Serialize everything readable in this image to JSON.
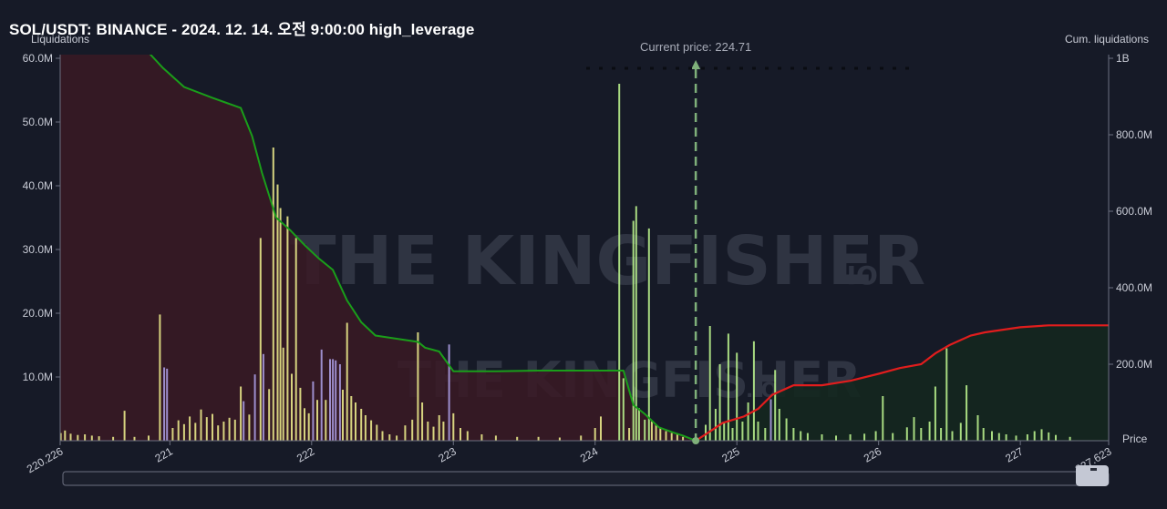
{
  "header": {
    "title": "SOL/USDT: BINANCE - 2024. 12. 14. 오전 9:00:00 high_leverage"
  },
  "labels": {
    "left_axis": "Liquidations",
    "right_axis": "Cum. liquidations",
    "x_axis": "Price",
    "current_price": "Current price: 224.71",
    "watermark_main": "THE KINGFISHER",
    "watermark_suffix": ".IO"
  },
  "colors": {
    "background": "#161a27",
    "left_cum_line": "#1a9e1a",
    "right_cum_line": "#e11d1d",
    "left_fill": "#3a1a24",
    "right_fill": "#14271f",
    "bar_yellow": "#e9e88a",
    "bar_purple": "#a89be0",
    "bar_green": "#b8f08c",
    "current_price_line": "#7fb07a"
  },
  "chart_data": {
    "type": "bar",
    "x_range": [
      220.226,
      227.623
    ],
    "x_ticks": [
      "220.226",
      "221",
      "222",
      "223",
      "224",
      "225",
      "226",
      "227",
      "227.623"
    ],
    "y_left": {
      "label": "Liquidations",
      "ticks": [
        "10.0M",
        "20.0M",
        "30.0M",
        "40.0M",
        "50.0M",
        "60.0M"
      ],
      "range": [
        0,
        60000000
      ]
    },
    "y_right": {
      "label": "Cum. liquidations",
      "ticks": [
        "200.0M",
        "400.0M",
        "600.0M",
        "800.0M",
        "1B"
      ],
      "range": [
        0,
        1000000000
      ]
    },
    "current_price": 224.71,
    "bars": [
      {
        "price": 220.23,
        "value": 1.2,
        "color": "yellow"
      },
      {
        "price": 220.26,
        "value": 1.6,
        "color": "yellow"
      },
      {
        "price": 220.3,
        "value": 1.1,
        "color": "yellow"
      },
      {
        "price": 220.35,
        "value": 0.9,
        "color": "yellow"
      },
      {
        "price": 220.4,
        "value": 1.0,
        "color": "yellow"
      },
      {
        "price": 220.45,
        "value": 0.8,
        "color": "yellow"
      },
      {
        "price": 220.5,
        "value": 0.7,
        "color": "yellow"
      },
      {
        "price": 220.6,
        "value": 0.6,
        "color": "yellow"
      },
      {
        "price": 220.68,
        "value": 4.7,
        "color": "yellow"
      },
      {
        "price": 220.75,
        "value": 0.6,
        "color": "yellow"
      },
      {
        "price": 220.85,
        "value": 0.8,
        "color": "yellow"
      },
      {
        "price": 220.93,
        "value": 19.8,
        "color": "yellow"
      },
      {
        "price": 220.96,
        "value": 11.5,
        "color": "purple"
      },
      {
        "price": 220.98,
        "value": 11.3,
        "color": "purple"
      },
      {
        "price": 221.02,
        "value": 2.0,
        "color": "yellow"
      },
      {
        "price": 221.06,
        "value": 3.2,
        "color": "yellow"
      },
      {
        "price": 221.1,
        "value": 2.6,
        "color": "yellow"
      },
      {
        "price": 221.14,
        "value": 3.8,
        "color": "yellow"
      },
      {
        "price": 221.18,
        "value": 2.8,
        "color": "yellow"
      },
      {
        "price": 221.22,
        "value": 4.9,
        "color": "yellow"
      },
      {
        "price": 221.26,
        "value": 3.7,
        "color": "yellow"
      },
      {
        "price": 221.3,
        "value": 4.2,
        "color": "yellow"
      },
      {
        "price": 221.34,
        "value": 2.4,
        "color": "yellow"
      },
      {
        "price": 221.38,
        "value": 3.0,
        "color": "yellow"
      },
      {
        "price": 221.42,
        "value": 3.6,
        "color": "yellow"
      },
      {
        "price": 221.46,
        "value": 3.3,
        "color": "yellow"
      },
      {
        "price": 221.5,
        "value": 8.5,
        "color": "yellow"
      },
      {
        "price": 221.52,
        "value": 6.2,
        "color": "purple"
      },
      {
        "price": 221.56,
        "value": 4.1,
        "color": "yellow"
      },
      {
        "price": 221.6,
        "value": 10.4,
        "color": "purple"
      },
      {
        "price": 221.64,
        "value": 31.8,
        "color": "yellow"
      },
      {
        "price": 221.66,
        "value": 13.6,
        "color": "purple"
      },
      {
        "price": 221.7,
        "value": 8.1,
        "color": "yellow"
      },
      {
        "price": 221.73,
        "value": 46.0,
        "color": "yellow"
      },
      {
        "price": 221.76,
        "value": 40.2,
        "color": "yellow"
      },
      {
        "price": 221.78,
        "value": 36.5,
        "color": "yellow"
      },
      {
        "price": 221.8,
        "value": 14.6,
        "color": "yellow"
      },
      {
        "price": 221.83,
        "value": 35.2,
        "color": "yellow"
      },
      {
        "price": 221.86,
        "value": 10.5,
        "color": "yellow"
      },
      {
        "price": 221.89,
        "value": 31.8,
        "color": "yellow"
      },
      {
        "price": 221.92,
        "value": 8.3,
        "color": "yellow"
      },
      {
        "price": 221.95,
        "value": 5.1,
        "color": "yellow"
      },
      {
        "price": 221.98,
        "value": 4.3,
        "color": "yellow"
      },
      {
        "price": 222.01,
        "value": 9.3,
        "color": "purple"
      },
      {
        "price": 222.04,
        "value": 6.4,
        "color": "yellow"
      },
      {
        "price": 222.07,
        "value": 14.3,
        "color": "purple"
      },
      {
        "price": 222.1,
        "value": 6.4,
        "color": "yellow"
      },
      {
        "price": 222.13,
        "value": 12.8,
        "color": "purple"
      },
      {
        "price": 222.15,
        "value": 12.8,
        "color": "purple"
      },
      {
        "price": 222.17,
        "value": 12.6,
        "color": "purple"
      },
      {
        "price": 222.2,
        "value": 12.0,
        "color": "purple"
      },
      {
        "price": 222.22,
        "value": 8.0,
        "color": "yellow"
      },
      {
        "price": 222.25,
        "value": 18.5,
        "color": "yellow"
      },
      {
        "price": 222.28,
        "value": 7.0,
        "color": "yellow"
      },
      {
        "price": 222.31,
        "value": 6.0,
        "color": "yellow"
      },
      {
        "price": 222.35,
        "value": 5.0,
        "color": "yellow"
      },
      {
        "price": 222.38,
        "value": 4.0,
        "color": "yellow"
      },
      {
        "price": 222.42,
        "value": 3.2,
        "color": "yellow"
      },
      {
        "price": 222.46,
        "value": 2.5,
        "color": "yellow"
      },
      {
        "price": 222.5,
        "value": 1.5,
        "color": "yellow"
      },
      {
        "price": 222.55,
        "value": 1.0,
        "color": "yellow"
      },
      {
        "price": 222.6,
        "value": 0.8,
        "color": "yellow"
      },
      {
        "price": 222.66,
        "value": 2.4,
        "color": "yellow"
      },
      {
        "price": 222.71,
        "value": 3.3,
        "color": "yellow"
      },
      {
        "price": 222.75,
        "value": 17.0,
        "color": "yellow"
      },
      {
        "price": 222.78,
        "value": 6.0,
        "color": "yellow"
      },
      {
        "price": 222.82,
        "value": 3.0,
        "color": "yellow"
      },
      {
        "price": 222.86,
        "value": 2.2,
        "color": "yellow"
      },
      {
        "price": 222.9,
        "value": 4.0,
        "color": "yellow"
      },
      {
        "price": 222.93,
        "value": 3.0,
        "color": "yellow"
      },
      {
        "price": 222.97,
        "value": 15.1,
        "color": "purple"
      },
      {
        "price": 223.0,
        "value": 4.3,
        "color": "yellow"
      },
      {
        "price": 223.05,
        "value": 2.0,
        "color": "yellow"
      },
      {
        "price": 223.1,
        "value": 1.5,
        "color": "yellow"
      },
      {
        "price": 223.2,
        "value": 1.0,
        "color": "yellow"
      },
      {
        "price": 223.3,
        "value": 0.8,
        "color": "yellow"
      },
      {
        "price": 223.45,
        "value": 0.6,
        "color": "yellow"
      },
      {
        "price": 223.6,
        "value": 0.6,
        "color": "yellow"
      },
      {
        "price": 223.75,
        "value": 0.5,
        "color": "yellow"
      },
      {
        "price": 223.9,
        "value": 0.8,
        "color": "yellow"
      },
      {
        "price": 224.0,
        "value": 2.0,
        "color": "yellow"
      },
      {
        "price": 224.04,
        "value": 3.8,
        "color": "yellow"
      },
      {
        "price": 224.17,
        "value": 56.0,
        "color": "green"
      },
      {
        "price": 224.2,
        "value": 9.8,
        "color": "green"
      },
      {
        "price": 224.24,
        "value": 2.0,
        "color": "yellow"
      },
      {
        "price": 224.27,
        "value": 34.5,
        "color": "green"
      },
      {
        "price": 224.29,
        "value": 36.8,
        "color": "green"
      },
      {
        "price": 224.31,
        "value": 5.1,
        "color": "green"
      },
      {
        "price": 224.35,
        "value": 3.3,
        "color": "green"
      },
      {
        "price": 224.38,
        "value": 33.3,
        "color": "green"
      },
      {
        "price": 224.4,
        "value": 3.0,
        "color": "yellow"
      },
      {
        "price": 224.43,
        "value": 2.5,
        "color": "yellow"
      },
      {
        "price": 224.46,
        "value": 2.0,
        "color": "yellow"
      },
      {
        "price": 224.5,
        "value": 1.5,
        "color": "yellow"
      },
      {
        "price": 224.54,
        "value": 1.2,
        "color": "yellow"
      },
      {
        "price": 224.58,
        "value": 1.0,
        "color": "yellow"
      },
      {
        "price": 224.62,
        "value": 0.6,
        "color": "yellow"
      },
      {
        "price": 224.78,
        "value": 2.5,
        "color": "green"
      },
      {
        "price": 224.81,
        "value": 18.0,
        "color": "green"
      },
      {
        "price": 224.85,
        "value": 5.0,
        "color": "green"
      },
      {
        "price": 224.88,
        "value": 12.0,
        "color": "green"
      },
      {
        "price": 224.91,
        "value": 3.0,
        "color": "green"
      },
      {
        "price": 224.94,
        "value": 16.8,
        "color": "green"
      },
      {
        "price": 224.97,
        "value": 2.0,
        "color": "green"
      },
      {
        "price": 225.0,
        "value": 13.8,
        "color": "green"
      },
      {
        "price": 225.04,
        "value": 3.0,
        "color": "green"
      },
      {
        "price": 225.08,
        "value": 6.0,
        "color": "green"
      },
      {
        "price": 225.12,
        "value": 15.6,
        "color": "green"
      },
      {
        "price": 225.15,
        "value": 3.0,
        "color": "green"
      },
      {
        "price": 225.2,
        "value": 2.0,
        "color": "green"
      },
      {
        "price": 225.24,
        "value": 6.5,
        "color": "purple"
      },
      {
        "price": 225.27,
        "value": 11.1,
        "color": "green"
      },
      {
        "price": 225.3,
        "value": 5.0,
        "color": "green"
      },
      {
        "price": 225.35,
        "value": 3.5,
        "color": "green"
      },
      {
        "price": 225.4,
        "value": 2.0,
        "color": "green"
      },
      {
        "price": 225.45,
        "value": 1.5,
        "color": "green"
      },
      {
        "price": 225.5,
        "value": 1.2,
        "color": "green"
      },
      {
        "price": 225.6,
        "value": 1.0,
        "color": "green"
      },
      {
        "price": 225.7,
        "value": 0.8,
        "color": "green"
      },
      {
        "price": 225.8,
        "value": 1.0,
        "color": "green"
      },
      {
        "price": 225.9,
        "value": 1.1,
        "color": "green"
      },
      {
        "price": 225.98,
        "value": 1.5,
        "color": "green"
      },
      {
        "price": 226.03,
        "value": 7.0,
        "color": "green"
      },
      {
        "price": 226.1,
        "value": 1.2,
        "color": "green"
      },
      {
        "price": 226.2,
        "value": 2.1,
        "color": "green"
      },
      {
        "price": 226.25,
        "value": 3.7,
        "color": "green"
      },
      {
        "price": 226.3,
        "value": 2.0,
        "color": "green"
      },
      {
        "price": 226.36,
        "value": 3.0,
        "color": "green"
      },
      {
        "price": 226.4,
        "value": 8.5,
        "color": "green"
      },
      {
        "price": 226.44,
        "value": 2.0,
        "color": "green"
      },
      {
        "price": 226.48,
        "value": 14.5,
        "color": "green"
      },
      {
        "price": 226.52,
        "value": 1.5,
        "color": "green"
      },
      {
        "price": 226.58,
        "value": 2.8,
        "color": "green"
      },
      {
        "price": 226.62,
        "value": 8.7,
        "color": "green"
      },
      {
        "price": 226.7,
        "value": 4.0,
        "color": "green"
      },
      {
        "price": 226.74,
        "value": 2.0,
        "color": "green"
      },
      {
        "price": 226.8,
        "value": 1.5,
        "color": "green"
      },
      {
        "price": 226.85,
        "value": 1.2,
        "color": "green"
      },
      {
        "price": 226.9,
        "value": 1.0,
        "color": "green"
      },
      {
        "price": 226.97,
        "value": 0.8,
        "color": "green"
      },
      {
        "price": 227.05,
        "value": 1.0,
        "color": "green"
      },
      {
        "price": 227.1,
        "value": 1.5,
        "color": "green"
      },
      {
        "price": 227.15,
        "value": 1.8,
        "color": "green"
      },
      {
        "price": 227.2,
        "value": 1.3,
        "color": "green"
      },
      {
        "price": 227.25,
        "value": 0.9,
        "color": "green"
      },
      {
        "price": 227.35,
        "value": 0.6,
        "color": "green"
      }
    ],
    "cum_short_side": {
      "color": "green",
      "points": [
        [
          220.226,
          62
        ],
        [
          220.45,
          61.2
        ],
        [
          220.6,
          61.2
        ],
        [
          220.85,
          60.9
        ],
        [
          220.95,
          58.5
        ],
        [
          221.1,
          55.5
        ],
        [
          221.3,
          53.8
        ],
        [
          221.4,
          53.0
        ],
        [
          221.5,
          52.2
        ],
        [
          221.58,
          47.8
        ],
        [
          221.65,
          42.0
        ],
        [
          221.75,
          35.0
        ],
        [
          221.85,
          33.0
        ],
        [
          221.95,
          30.7
        ],
        [
          222.05,
          28.6
        ],
        [
          222.15,
          26.8
        ],
        [
          222.25,
          22.0
        ],
        [
          222.35,
          18.6
        ],
        [
          222.45,
          16.5
        ],
        [
          222.6,
          16.0
        ],
        [
          222.75,
          15.5
        ],
        [
          222.8,
          14.6
        ],
        [
          222.9,
          14.0
        ],
        [
          223.0,
          10.9
        ],
        [
          223.3,
          10.9
        ],
        [
          223.6,
          11.0
        ],
        [
          224.02,
          11.0
        ],
        [
          224.2,
          11.0
        ],
        [
          224.27,
          5.6
        ],
        [
          224.35,
          4.2
        ],
        [
          224.45,
          2.1
        ],
        [
          224.55,
          1.3
        ],
        [
          224.62,
          0.8
        ],
        [
          224.71,
          0.0
        ]
      ]
    },
    "cum_long_side": {
      "color": "red",
      "points": [
        [
          224.71,
          0.0
        ],
        [
          224.8,
          1.3
        ],
        [
          224.9,
          2.8
        ],
        [
          225.05,
          3.8
        ],
        [
          225.15,
          5.0
        ],
        [
          225.25,
          7.2
        ],
        [
          225.4,
          8.7
        ],
        [
          225.6,
          8.7
        ],
        [
          225.8,
          9.4
        ],
        [
          226.0,
          10.5
        ],
        [
          226.15,
          11.4
        ],
        [
          226.3,
          12.0
        ],
        [
          226.4,
          13.7
        ],
        [
          226.5,
          15.0
        ],
        [
          226.65,
          16.5
        ],
        [
          226.75,
          17.0
        ],
        [
          227.0,
          17.8
        ],
        [
          227.2,
          18.1
        ],
        [
          227.4,
          18.1
        ],
        [
          227.623,
          18.1
        ]
      ]
    }
  }
}
